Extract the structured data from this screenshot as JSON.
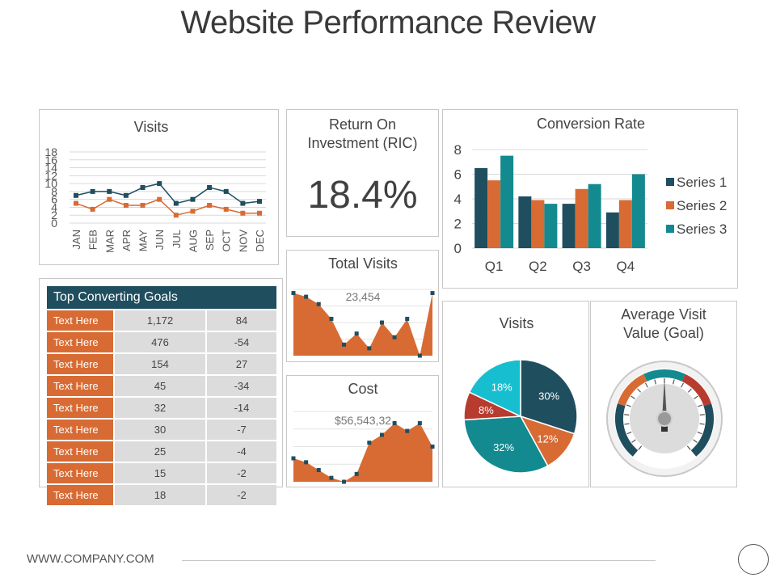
{
  "page_title": "Website Performance Review",
  "footer": {
    "url": "WWW.COMPANY.COM"
  },
  "colors": {
    "navy": "#1f4e5f",
    "orange": "#d86b33",
    "teal": "#138a8f",
    "cyan": "#17becf",
    "red": "#b83b2f"
  },
  "roi": {
    "title": "Return On Investment (RIC)",
    "value": "18.4%"
  },
  "goals": {
    "title": "Top Converting Goals",
    "rows": [
      [
        "Text Here",
        "1,172",
        "84"
      ],
      [
        "Text Here",
        "476",
        "-54"
      ],
      [
        "Text Here",
        "154",
        "27"
      ],
      [
        "Text Here",
        "45",
        "-34"
      ],
      [
        "Text Here",
        "32",
        "-14"
      ],
      [
        "Text Here",
        "30",
        "-7"
      ],
      [
        "Text Here",
        "25",
        "-4"
      ],
      [
        "Text Here",
        "15",
        "-2"
      ],
      [
        "Text Here",
        "18",
        "-2"
      ]
    ]
  },
  "gauge": {
    "title": "Average Visit Value (Goal)",
    "level": 0.5
  },
  "chart_data": [
    {
      "id": "visits_line",
      "type": "line",
      "title": "Visits",
      "categories": [
        "JAN",
        "FEB",
        "MAR",
        "APR",
        "MAY",
        "JUN",
        "JUL",
        "AUG",
        "SEP",
        "OCT",
        "NOV",
        "DEC"
      ],
      "series": [
        {
          "values": [
            7,
            8,
            8,
            7,
            9,
            10,
            5,
            6,
            9,
            8,
            5,
            5.5
          ]
        },
        {
          "values": [
            5,
            3.5,
            6,
            4.5,
            4.5,
            6,
            2,
            3,
            4.5,
            3.5,
            2.5,
            2.5
          ]
        }
      ],
      "yticks": [
        0,
        2,
        4,
        6,
        8,
        10,
        12,
        14,
        16,
        18
      ],
      "ylim": [
        0,
        18
      ],
      "grid": true
    },
    {
      "id": "conversion_bar",
      "type": "bar",
      "title": "Conversion Rate",
      "categories": [
        "Q1",
        "Q2",
        "Q3",
        "Q4"
      ],
      "series": [
        {
          "name": "Series 1",
          "values": [
            6.5,
            4.2,
            3.6,
            2.9
          ]
        },
        {
          "name": "Series 2",
          "values": [
            5.5,
            3.9,
            4.8,
            3.9
          ]
        },
        {
          "name": "Series 3",
          "values": [
            7.5,
            3.6,
            5.2,
            6.0
          ]
        }
      ],
      "yticks": [
        0,
        2,
        4,
        6,
        8
      ],
      "ylim": [
        0,
        8
      ],
      "legend": "right",
      "grid": true
    },
    {
      "id": "total_visits_area",
      "type": "area",
      "title": "Total Visits",
      "annotation": "23,454",
      "values": [
        8.5,
        8,
        7,
        5,
        1.5,
        3,
        1,
        4.5,
        2.5,
        5,
        0,
        8.5
      ]
    },
    {
      "id": "cost_area",
      "type": "area",
      "title": "Cost",
      "annotation": "$56,543,32",
      "values": [
        3,
        2.5,
        1.5,
        0.5,
        0,
        1,
        5,
        6,
        7.5,
        6.5,
        7.5,
        4.5
      ]
    },
    {
      "id": "visits_pie",
      "type": "pie",
      "title": "Visits",
      "slices": [
        {
          "label": "30%",
          "value": 30,
          "color": "#1f4e5f"
        },
        {
          "label": "12%",
          "value": 12,
          "color": "#d86b33"
        },
        {
          "label": "32%",
          "value": 32,
          "color": "#138a8f"
        },
        {
          "label": "8%",
          "value": 8,
          "color": "#b83b2f"
        },
        {
          "label": "18%",
          "value": 18,
          "color": "#17becf"
        }
      ]
    }
  ]
}
